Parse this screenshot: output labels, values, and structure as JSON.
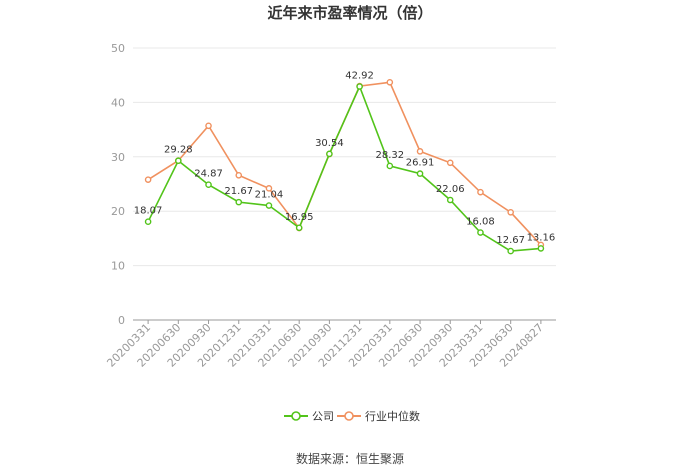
{
  "chart_data": {
    "type": "line",
    "title": "近年来市盈率情况（倍）",
    "categories": [
      "20200331",
      "20200630",
      "20200930",
      "20201231",
      "20210331",
      "20210630",
      "20210930",
      "20211231",
      "20220331",
      "20220630",
      "20220930",
      "20230331",
      "20230630",
      "20240827"
    ],
    "series": [
      {
        "name": "公司",
        "color": "#52c41a",
        "values": [
          18.07,
          29.28,
          24.87,
          21.67,
          21.04,
          16.95,
          30.54,
          42.92,
          28.32,
          26.91,
          22.06,
          16.08,
          12.67,
          13.16
        ],
        "labels": [
          "18.07",
          "29.28",
          "24.87",
          "21.67",
          "21.04",
          "16.95",
          "30.54",
          "42.92",
          "28.32",
          "26.91",
          "22.06",
          "16.08",
          "12.67",
          "13.16"
        ]
      },
      {
        "name": "行业中位数",
        "color": "#f0915f",
        "values": [
          25.8,
          29.3,
          35.7,
          26.6,
          24.2,
          16.9,
          30.5,
          43.0,
          43.7,
          31.0,
          28.9,
          23.5,
          19.8,
          13.8
        ]
      }
    ],
    "ylim": [
      0,
      50
    ],
    "yticks": [
      0,
      10,
      20,
      30,
      40,
      50
    ],
    "grid": true,
    "legend_position": "bottom"
  },
  "source": "数据来源：恒生聚源"
}
